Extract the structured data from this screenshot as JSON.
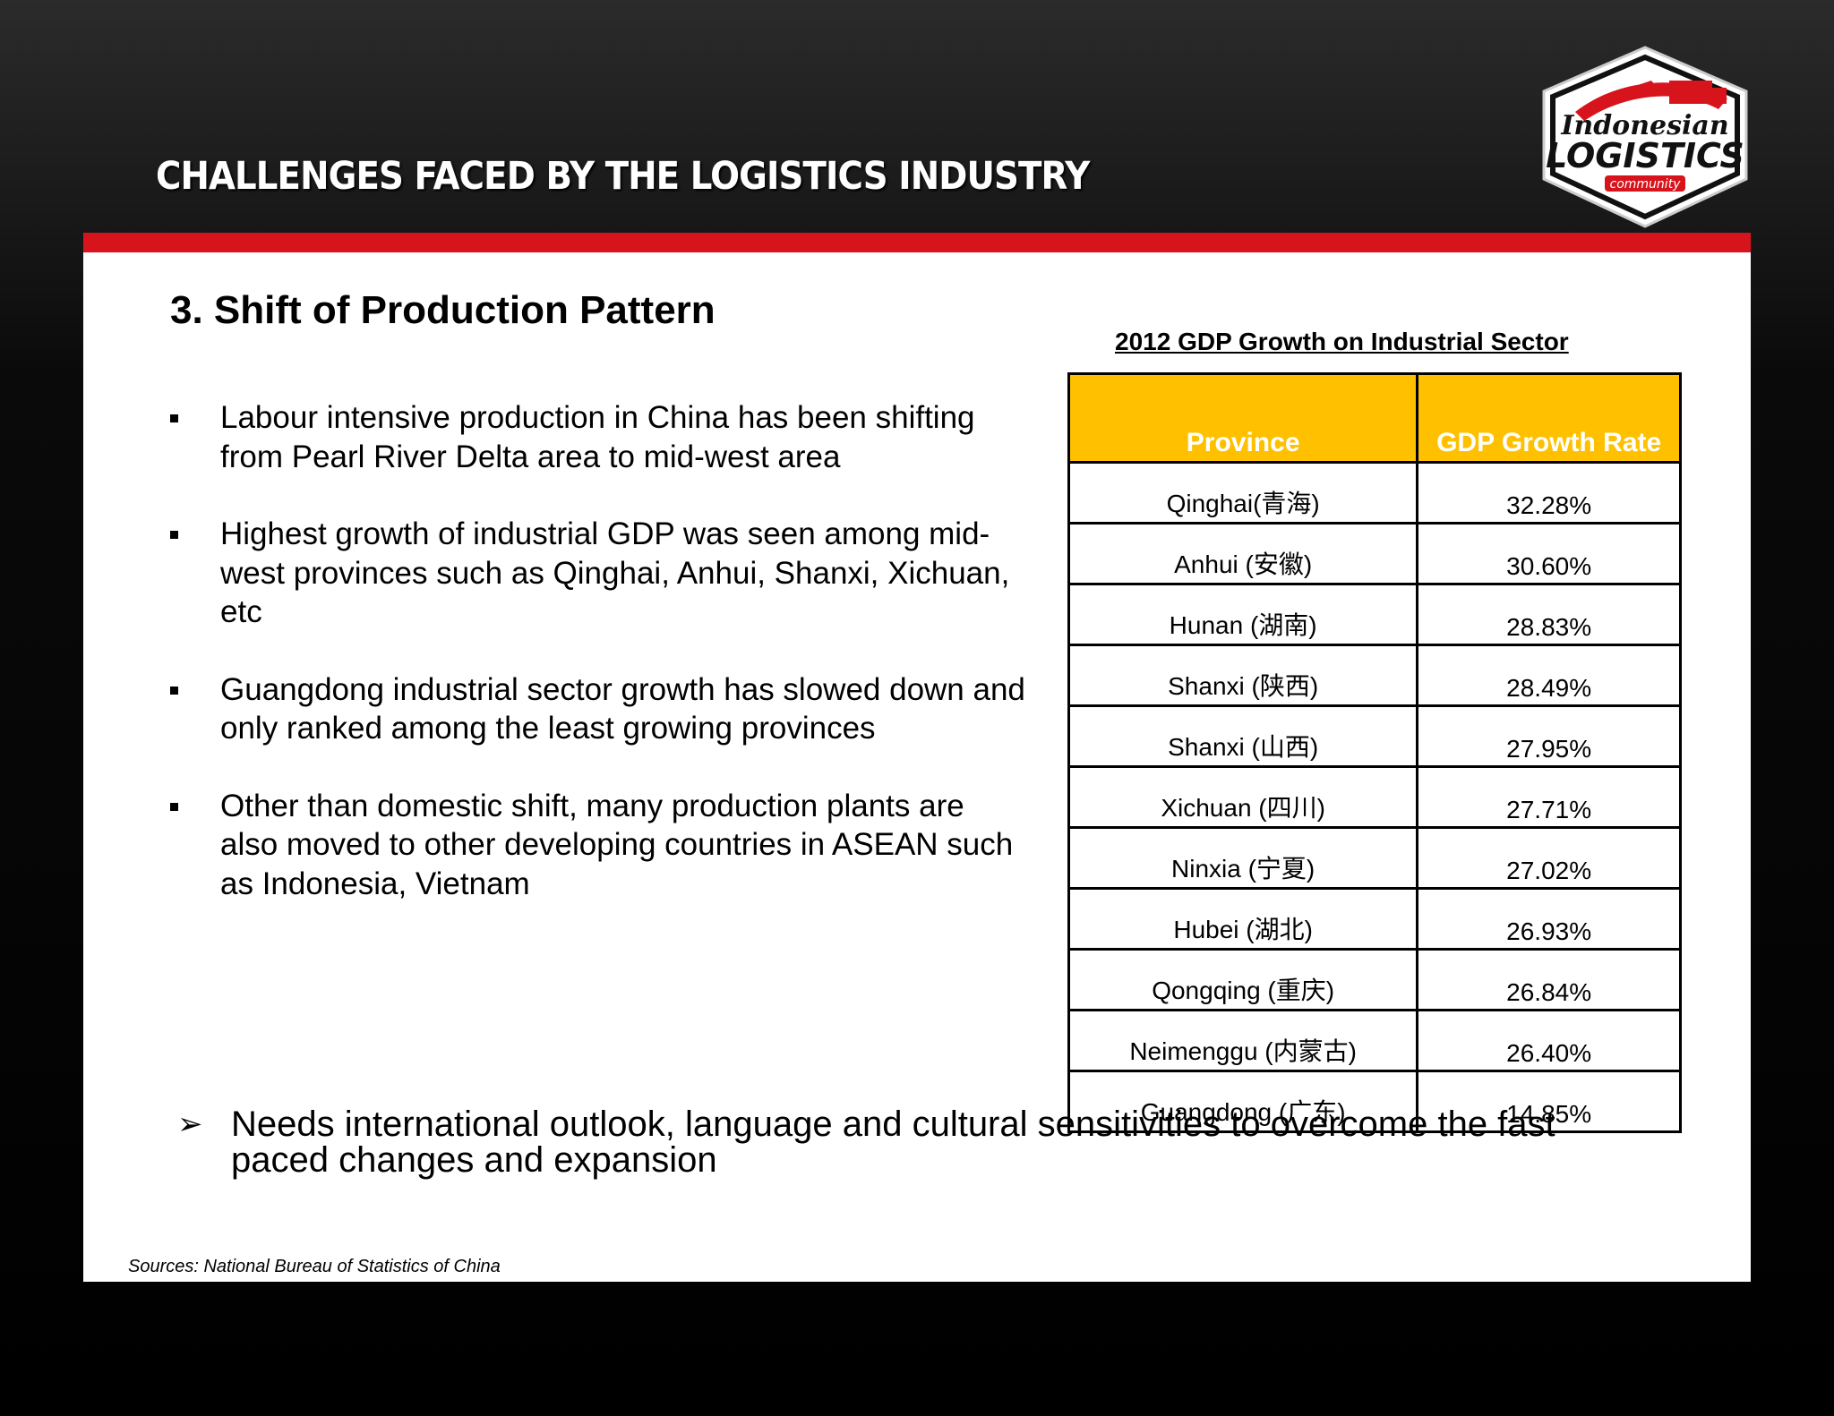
{
  "header": {
    "title": "CHALLENGES FACED BY THE LOGISTICS INDUSTRY",
    "logo": {
      "line1": "Indonesian",
      "line2": "LOGISTICS",
      "line3": "community"
    }
  },
  "section": {
    "heading": "3. Shift of Production Pattern",
    "bullets": [
      "Labour intensive production in China has been shifting from Pearl River Delta area to mid-west area",
      "Highest growth of industrial GDP was seen among mid-west provinces such as Qinghai, Anhui, Shanxi, Xichuan, etc",
      "Guangdong industrial sector growth has slowed down and only ranked among the least growing provinces",
      "Other than domestic shift, many production plants are also moved to other developing countries in ASEAN such as Indonesia, Vietnam"
    ],
    "callout": "Needs international outlook, language and cultural sensitivities to overcome the fast paced changes and expansion",
    "callout_icon": "arrowhead-bullet-icon",
    "source": "Sources: National Bureau of Statistics of China"
  },
  "table": {
    "title": "2012 GDP Growth on Industrial Sector",
    "headers": [
      "Province",
      "GDP Growth Rate"
    ],
    "rows": [
      [
        "Qinghai(青海)",
        "32.28%"
      ],
      [
        "Anhui (安徽)",
        "30.60%"
      ],
      [
        "Hunan (湖南)",
        "28.83%"
      ],
      [
        "Shanxi (陕西)",
        "28.49%"
      ],
      [
        "Shanxi (山西)",
        "27.95%"
      ],
      [
        "Xichuan (四川)",
        "27.71%"
      ],
      [
        "Ninxia (宁夏)",
        "27.02%"
      ],
      [
        "Hubei (湖北)",
        "26.93%"
      ],
      [
        "Qongqing (重庆)",
        "26.84%"
      ],
      [
        "Neimenggu (内蒙古)",
        "26.40%"
      ],
      [
        "Guangdong (广东)",
        "14.85%"
      ]
    ]
  },
  "colors": {
    "accent_red": "#d7141c",
    "header_yellow": "#ffc000",
    "background_dark": "#000000"
  }
}
